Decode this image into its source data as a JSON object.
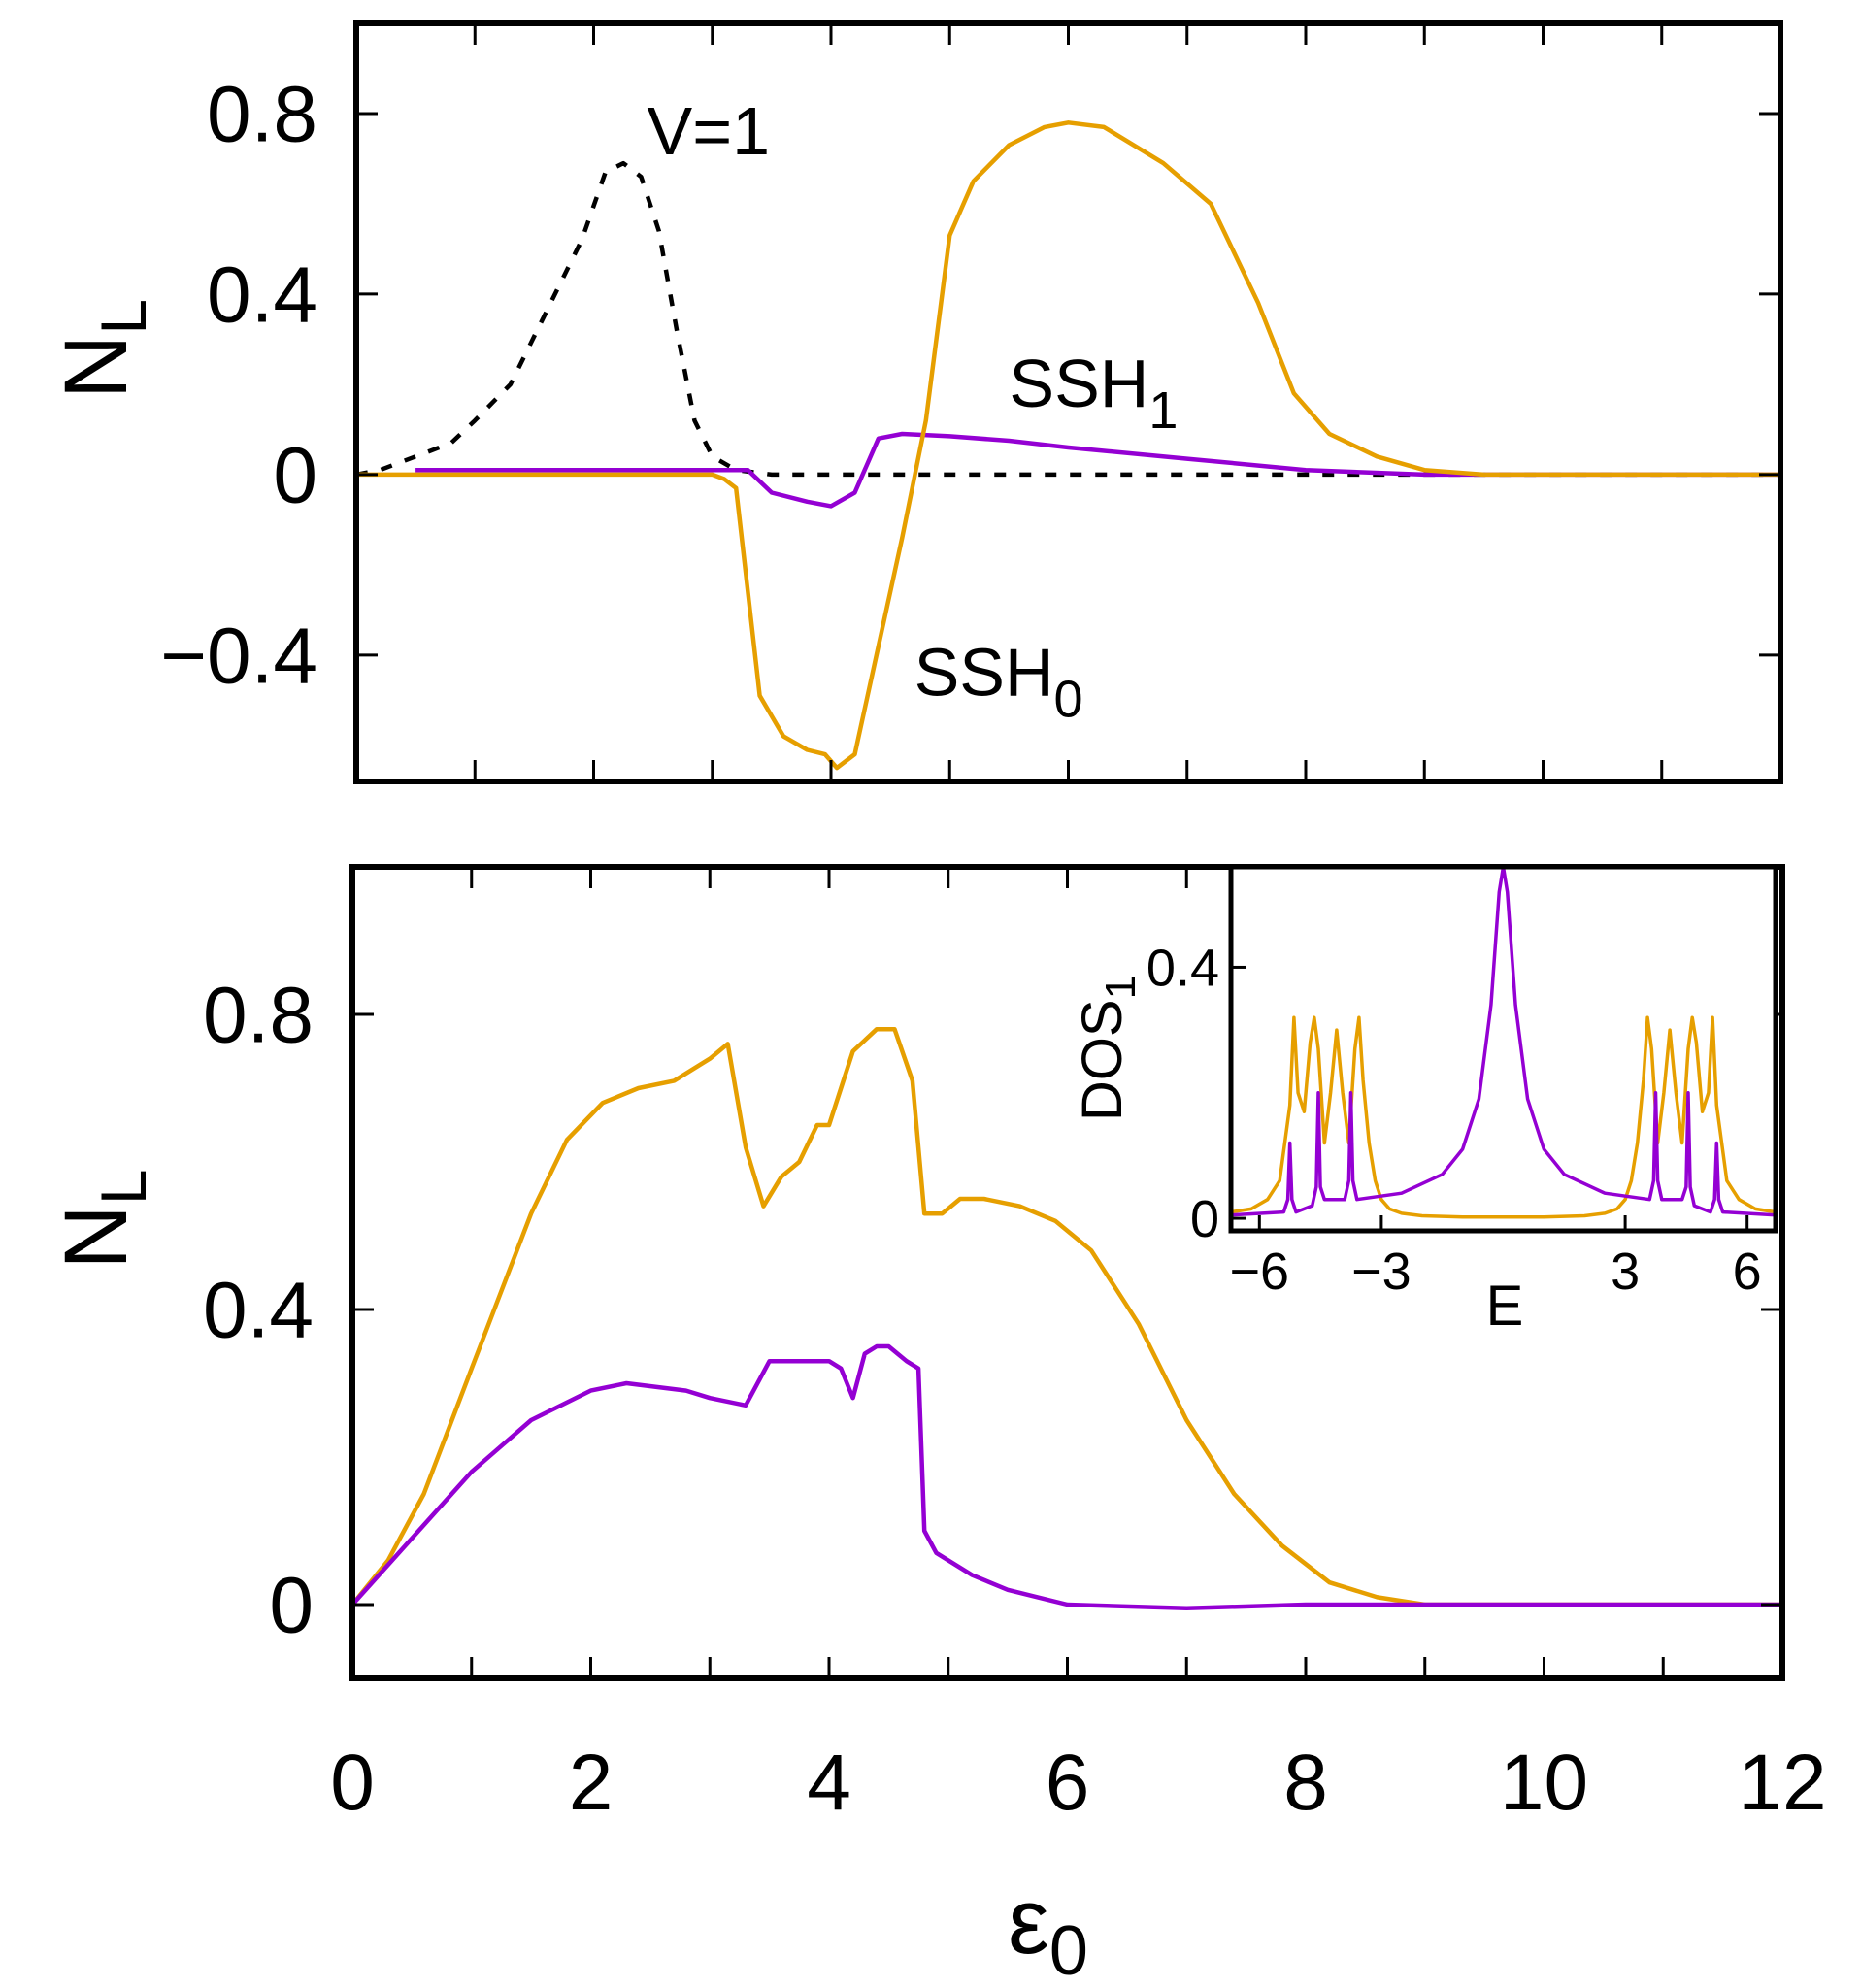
{
  "chart_data": [
    {
      "type": "line",
      "panel": "top",
      "xlabel": "",
      "ylabel": "N",
      "ylabel_sub": "L",
      "xlim": [
        0,
        12
      ],
      "ylim": [
        -0.68,
        1.0
      ],
      "yticks": [
        -0.4,
        0,
        0.4,
        0.8
      ],
      "ytick_labels": [
        "−0.4",
        "0",
        "0.4",
        "0.8"
      ],
      "xticks": [
        0,
        1,
        2,
        3,
        4,
        5,
        6,
        7,
        8,
        9,
        10,
        11,
        12
      ],
      "series": [
        {
          "name": "V=1",
          "color": "#000000",
          "dash": "dashed",
          "x": [
            0,
            0.2,
            0.5,
            0.8,
            1.0,
            1.3,
            1.6,
            1.9,
            2.1,
            2.25,
            2.4,
            2.55,
            2.7,
            2.85,
            3.0,
            3.2,
            3.5,
            4,
            5,
            6,
            8,
            10,
            12
          ],
          "y": [
            0,
            0.01,
            0.04,
            0.07,
            0.12,
            0.2,
            0.36,
            0.52,
            0.67,
            0.69,
            0.66,
            0.54,
            0.32,
            0.12,
            0.04,
            0.01,
            0.0,
            0,
            0,
            0,
            0,
            0,
            0
          ]
        },
        {
          "name": "SSH_1",
          "color": "#9400D3",
          "dash": "solid",
          "x": [
            0.5,
            1,
            2,
            3,
            3.3,
            3.5,
            3.8,
            4.0,
            4.2,
            4.4,
            4.6,
            5,
            5.5,
            6,
            7,
            8,
            9,
            10,
            11,
            12
          ],
          "y": [
            0.01,
            0.01,
            0.01,
            0.01,
            0.01,
            -0.04,
            -0.06,
            -0.07,
            -0.04,
            0.08,
            0.09,
            0.085,
            0.075,
            0.06,
            0.035,
            0.01,
            0.0,
            0.0,
            0.0,
            0.0
          ]
        },
        {
          "name": "SSH_0",
          "color": "#E69F00",
          "dash": "solid",
          "x": [
            0,
            1,
            2,
            3,
            3.1,
            3.2,
            3.4,
            3.6,
            3.8,
            3.95,
            4.05,
            4.2,
            4.4,
            4.6,
            4.8,
            5.0,
            5.2,
            5.5,
            5.8,
            6.0,
            6.3,
            6.8,
            7.2,
            7.6,
            7.9,
            8.2,
            8.6,
            9.0,
            9.5,
            10,
            11,
            12
          ],
          "y": [
            0,
            0,
            0,
            0,
            -0.01,
            -0.03,
            -0.49,
            -0.58,
            -0.61,
            -0.62,
            -0.65,
            -0.62,
            -0.38,
            -0.14,
            0.12,
            0.53,
            0.65,
            0.73,
            0.77,
            0.78,
            0.77,
            0.69,
            0.6,
            0.38,
            0.18,
            0.09,
            0.04,
            0.01,
            0.0,
            0.0,
            0.0,
            0.0
          ]
        }
      ],
      "annotations": [
        {
          "text": "V=1",
          "x": 2.45,
          "y": 0.71
        },
        {
          "text": "SSH",
          "sub": "1",
          "x": 5.5,
          "y": 0.15
        },
        {
          "text": "SSH",
          "sub": "0",
          "x": 4.7,
          "y": -0.49
        }
      ]
    },
    {
      "type": "line",
      "panel": "bottom",
      "xlabel": "ε",
      "xlabel_sub": "0",
      "ylabel": "N",
      "ylabel_sub": "L",
      "xlim": [
        0,
        12
      ],
      "ylim": [
        -0.1,
        1.0
      ],
      "yticks": [
        0,
        0.4,
        0.8
      ],
      "ytick_labels": [
        "0",
        "0.4",
        "0.8"
      ],
      "xticks": [
        0,
        1,
        2,
        3,
        4,
        5,
        6,
        7,
        8,
        9,
        10,
        11,
        12
      ],
      "xtick_labels": [
        "0",
        "2",
        "4",
        "6",
        "8",
        "10",
        "12"
      ],
      "series": [
        {
          "name": "orange",
          "color": "#E69F00",
          "dash": "solid",
          "x": [
            0,
            0.3,
            0.6,
            1.0,
            1.5,
            1.8,
            2.1,
            2.4,
            2.7,
            3.0,
            3.15,
            3.3,
            3.45,
            3.6,
            3.75,
            3.9,
            4.0,
            4.1,
            4.2,
            4.4,
            4.55,
            4.7,
            4.8,
            4.95,
            5.1,
            5.3,
            5.6,
            5.9,
            6.2,
            6.6,
            7.0,
            7.4,
            7.8,
            8.2,
            8.6,
            9.0,
            9.5,
            10,
            11,
            12
          ],
          "y": [
            0,
            0.06,
            0.15,
            0.32,
            0.53,
            0.63,
            0.68,
            0.7,
            0.71,
            0.74,
            0.76,
            0.62,
            0.54,
            0.58,
            0.6,
            0.65,
            0.65,
            0.7,
            0.75,
            0.78,
            0.78,
            0.71,
            0.53,
            0.53,
            0.55,
            0.55,
            0.54,
            0.52,
            0.48,
            0.38,
            0.25,
            0.15,
            0.08,
            0.03,
            0.01,
            0.0,
            0.0,
            0.0,
            0.0,
            0.0
          ]
        },
        {
          "name": "purple",
          "color": "#9400D3",
          "dash": "solid",
          "x": [
            0,
            0.5,
            1.0,
            1.5,
            2.0,
            2.3,
            2.8,
            3.0,
            3.3,
            3.5,
            3.8,
            4.0,
            4.1,
            4.2,
            4.3,
            4.4,
            4.5,
            4.65,
            4.75,
            4.8,
            4.9,
            5.2,
            5.5,
            6.0,
            7.0,
            8.0,
            9.0,
            10,
            11,
            12
          ],
          "y": [
            0,
            0.09,
            0.18,
            0.25,
            0.29,
            0.3,
            0.29,
            0.28,
            0.27,
            0.33,
            0.33,
            0.33,
            0.32,
            0.28,
            0.34,
            0.35,
            0.35,
            0.33,
            0.32,
            0.1,
            0.07,
            0.04,
            0.02,
            0.0,
            -0.005,
            0.0,
            0.0,
            0.0,
            0.0,
            0.0
          ]
        }
      ]
    },
    {
      "type": "line",
      "panel": "inset",
      "xlabel": "E",
      "ylabel": "DOS",
      "ylabel_sub": "1",
      "xlim": [
        -6.7,
        6.7
      ],
      "ylim": [
        -0.02,
        0.56
      ],
      "yticks": [
        0,
        0.4
      ],
      "ytick_labels": [
        "0",
        "0.4"
      ],
      "xticks": [
        -6,
        -3,
        3,
        6
      ],
      "xtick_labels": [
        "−6",
        "−3",
        "3",
        "6"
      ],
      "series": [
        {
          "name": "orange",
          "color": "#E69F00",
          "dash": "solid",
          "x": [
            -6.7,
            -6.2,
            -5.8,
            -5.5,
            -5.25,
            -5.15,
            -5.05,
            -4.9,
            -4.75,
            -4.65,
            -4.55,
            -4.4,
            -4.25,
            -4.1,
            -3.95,
            -3.8,
            -3.65,
            -3.55,
            -3.45,
            -3.3,
            -3.15,
            -3.0,
            -2.8,
            -2.5,
            -2.0,
            -1.0,
            0,
            1.0,
            2.0,
            2.5,
            2.8,
            3.0,
            3.15,
            3.3,
            3.45,
            3.55,
            3.65,
            3.8,
            3.95,
            4.1,
            4.25,
            4.4,
            4.55,
            4.65,
            4.75,
            4.9,
            5.05,
            5.15,
            5.25,
            5.5,
            5.8,
            6.2,
            6.7
          ],
          "y": [
            0.01,
            0.015,
            0.03,
            0.06,
            0.18,
            0.32,
            0.2,
            0.17,
            0.28,
            0.32,
            0.27,
            0.12,
            0.2,
            0.3,
            0.2,
            0.12,
            0.27,
            0.32,
            0.22,
            0.12,
            0.06,
            0.03,
            0.015,
            0.008,
            0.004,
            0.002,
            0.002,
            0.002,
            0.004,
            0.008,
            0.015,
            0.03,
            0.06,
            0.12,
            0.22,
            0.32,
            0.27,
            0.12,
            0.2,
            0.3,
            0.2,
            0.12,
            0.27,
            0.32,
            0.28,
            0.17,
            0.2,
            0.32,
            0.18,
            0.06,
            0.03,
            0.015,
            0.01
          ]
        },
        {
          "name": "purple",
          "color": "#9400D3",
          "dash": "solid",
          "x": [
            -6.7,
            -5.4,
            -5.3,
            -5.25,
            -5.2,
            -5.1,
            -4.7,
            -4.6,
            -4.55,
            -4.5,
            -4.4,
            -3.9,
            -3.8,
            -3.75,
            -3.7,
            -3.6,
            -2.5,
            -1.5,
            -1.0,
            -0.6,
            -0.3,
            -0.1,
            0,
            0.1,
            0.3,
            0.6,
            1.0,
            1.5,
            2.5,
            3.6,
            3.7,
            3.75,
            3.8,
            3.9,
            4.4,
            4.5,
            4.55,
            4.6,
            4.7,
            5.1,
            5.2,
            5.25,
            5.3,
            5.4,
            6.7
          ],
          "y": [
            0.005,
            0.01,
            0.03,
            0.12,
            0.03,
            0.01,
            0.02,
            0.05,
            0.2,
            0.05,
            0.03,
            0.03,
            0.06,
            0.2,
            0.06,
            0.03,
            0.04,
            0.07,
            0.11,
            0.19,
            0.34,
            0.52,
            0.56,
            0.52,
            0.34,
            0.19,
            0.11,
            0.07,
            0.04,
            0.03,
            0.06,
            0.2,
            0.06,
            0.03,
            0.03,
            0.05,
            0.2,
            0.05,
            0.02,
            0.01,
            0.03,
            0.12,
            0.03,
            0.01,
            0.005
          ]
        }
      ]
    }
  ]
}
